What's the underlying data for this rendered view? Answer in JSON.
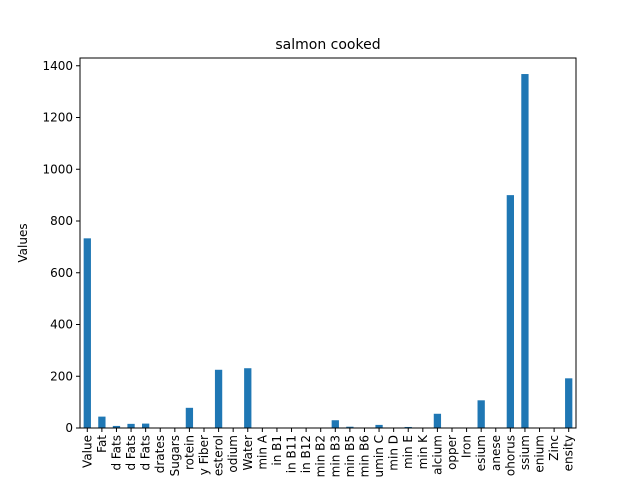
{
  "chart_data": {
    "type": "bar",
    "title": "salmon cooked",
    "xlabel": "",
    "ylabel": "Values",
    "ylim": [
      0,
      1430
    ],
    "yticks": [
      0,
      200,
      400,
      600,
      800,
      1000,
      1200,
      1400
    ],
    "grid": false,
    "bar_color": "#1f77b4",
    "categories": [
      "Value",
      "Fat",
      "d Fats",
      "d Fats",
      "d Fats",
      "drates",
      "Sugars",
      "rotein",
      "y Fiber",
      "esterol",
      "odium",
      "Water",
      "min A",
      "in B1",
      "in B11",
      "in B12",
      "min B2",
      "min B3",
      "min B5",
      "min B6",
      "umin C",
      "min D",
      "min E",
      "min K",
      "alcium",
      "opper",
      "Iron",
      "esium",
      "anese",
      "ohorus",
      "ssium",
      "enium",
      "Zinc",
      "ensity"
    ],
    "values": [
      733,
      44,
      8,
      16,
      17,
      0,
      0,
      78,
      0,
      225,
      0,
      231,
      0,
      0,
      0,
      0,
      0,
      30,
      5,
      1,
      12,
      0,
      4,
      0,
      55,
      0,
      0,
      107,
      0,
      900,
      1368,
      0,
      0,
      192
    ]
  }
}
